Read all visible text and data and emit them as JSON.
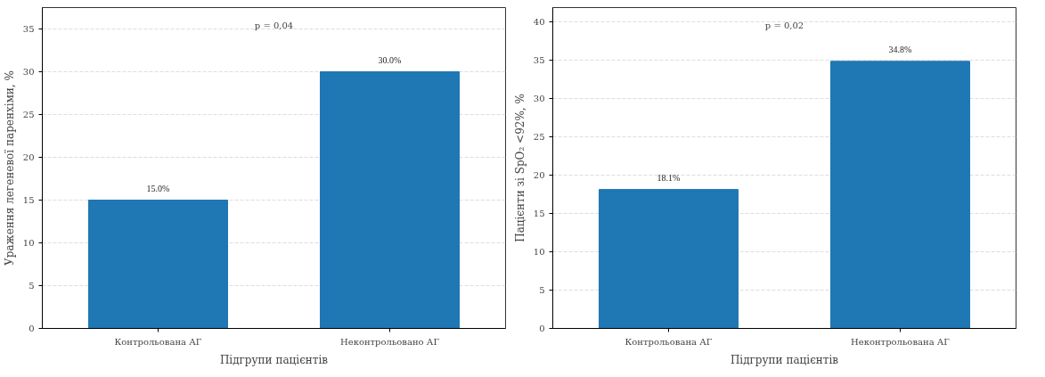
{
  "chart_data": [
    {
      "type": "bar",
      "categories": [
        "Контрольована АГ",
        "Неконтрольовано АГ"
      ],
      "values": [
        15.0,
        30.0
      ],
      "value_labels": [
        "15.0%",
        "30.0%"
      ],
      "color": "#1f77b4",
      "xlabel": "Підгрупи пацієнтів",
      "ylabel": "Ураження легеневої паренхіми, %",
      "ylim": [
        0,
        37.5
      ],
      "yticks": [
        0,
        5,
        10,
        15,
        20,
        25,
        30,
        35
      ],
      "grid": "y",
      "annotations": [
        "p = 0,04"
      ]
    },
    {
      "type": "bar",
      "categories": [
        "Контрольована АГ",
        "Неконтрольована АГ"
      ],
      "values": [
        18.1,
        34.8
      ],
      "value_labels": [
        "18.1%",
        "34.8%"
      ],
      "color": "#1f77b4",
      "xlabel": "Підгрупи пацієнтів",
      "ylabel": "Пацієнти зі SpO₂ <92%, %",
      "ylim": [
        0,
        41.8
      ],
      "yticks": [
        0,
        5,
        10,
        15,
        20,
        25,
        30,
        35,
        40
      ],
      "grid": "y",
      "annotations": [
        "p = 0,02"
      ]
    }
  ]
}
